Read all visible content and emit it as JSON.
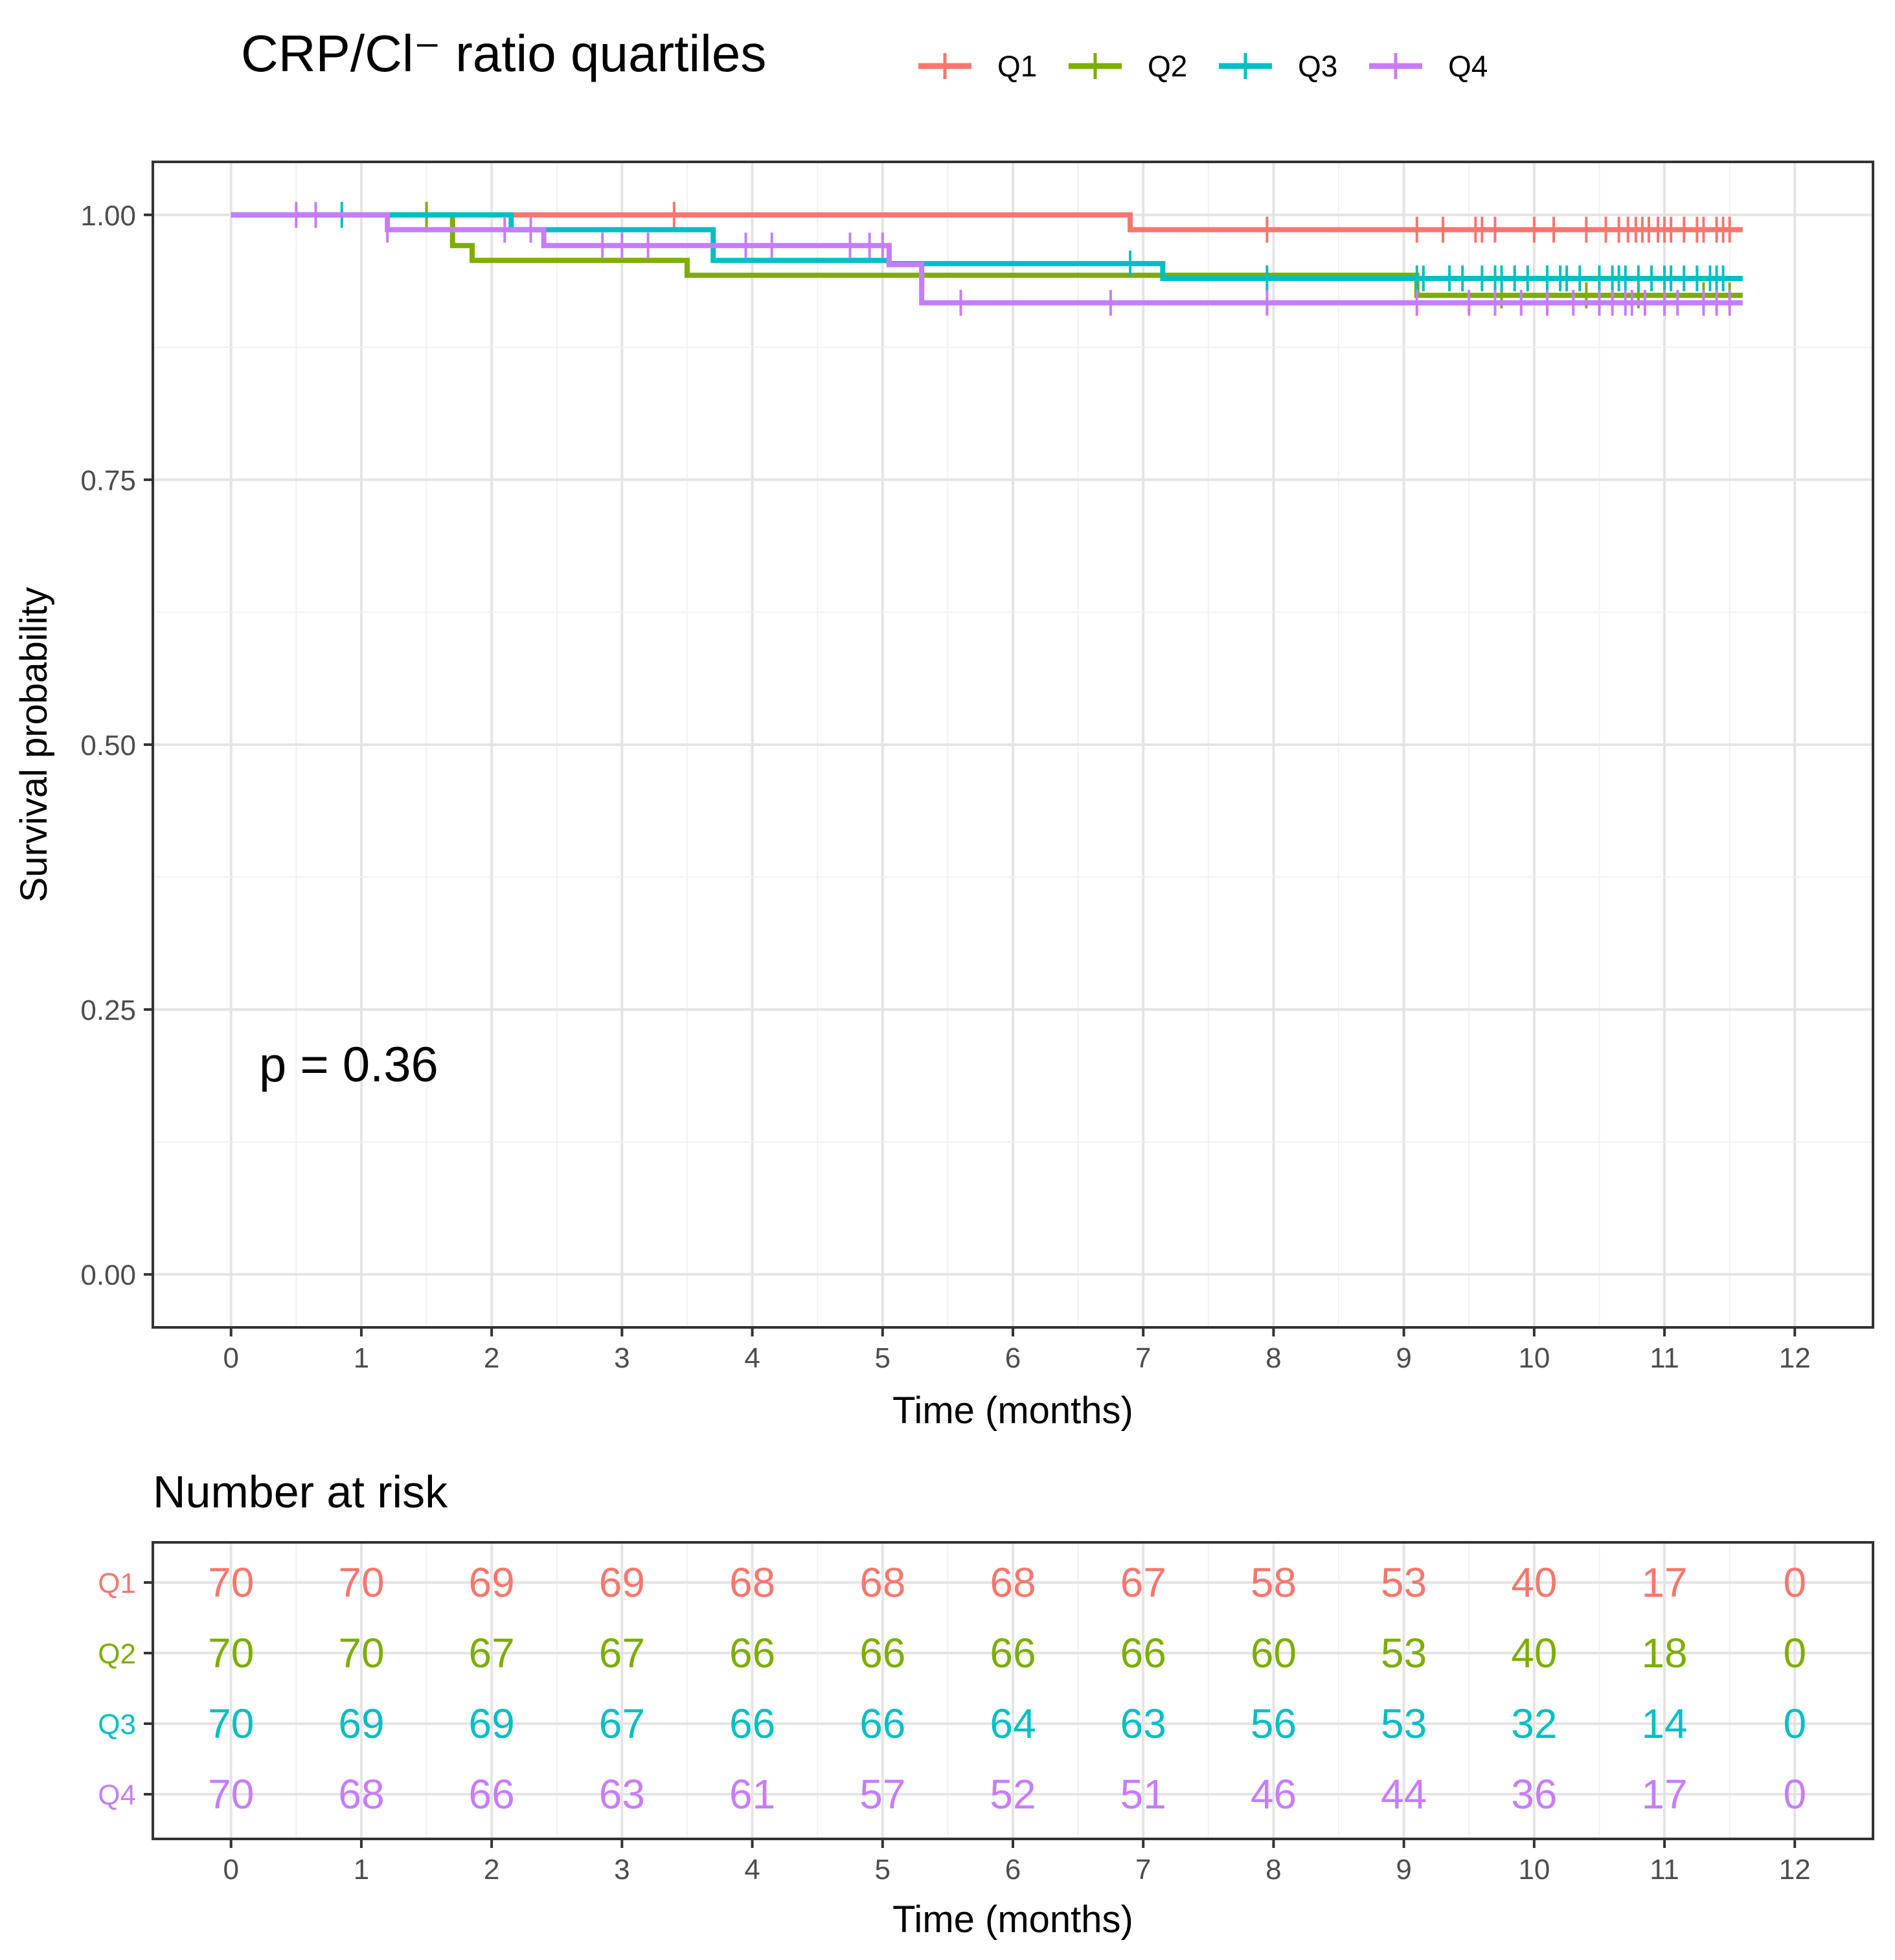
{
  "chart_data": [
    {
      "type": "line",
      "subtype": "kaplan-meier",
      "legend_title": "CRP/Cl⁻ ratio quartiles",
      "legend_position": "top",
      "xlabel": "Time (months)",
      "ylabel": "Survival probability",
      "xlim": [
        -0.6,
        12.6
      ],
      "ylim": [
        -0.05,
        1.05
      ],
      "xticks": [
        0,
        1,
        2,
        3,
        4,
        5,
        6,
        7,
        8,
        9,
        10,
        11,
        12
      ],
      "xtick_labels": [
        "0",
        "1",
        "2",
        "3",
        "4",
        "5",
        "6",
        "7",
        "8",
        "9",
        "10",
        "11",
        "12"
      ],
      "yticks": [
        0,
        0.25,
        0.5,
        0.75,
        1.0
      ],
      "ytick_labels": [
        "0.00",
        "0.25",
        "0.50",
        "0.75",
        "1.00"
      ],
      "grid": true,
      "annotation": "p = 0.36",
      "series": [
        {
          "name": "Q1",
          "color": "#F8766D",
          "steps": [
            [
              0,
              1.0
            ],
            [
              6.9,
              0.986
            ],
            [
              11.6,
              0.986
            ]
          ],
          "censor": [
            1.5,
            3.4,
            7.95,
            9.1,
            9.3,
            9.55,
            9.6,
            9.7,
            10.0,
            10.15,
            10.4,
            10.55,
            10.65,
            10.72,
            10.78,
            10.83,
            10.88,
            10.95,
            11.0,
            11.05,
            11.15,
            11.25,
            11.3,
            11.4,
            11.45,
            11.5
          ]
        },
        {
          "name": "Q2",
          "color": "#7CAE00",
          "steps": [
            [
              0,
              1.0
            ],
            [
              1.7,
              0.971
            ],
            [
              1.85,
              0.957
            ],
            [
              3.5,
              0.943
            ],
            [
              9.1,
              0.924
            ],
            [
              11.6,
              0.924
            ]
          ],
          "censor": [
            1.5,
            9.7,
            9.75,
            10.4,
            10.6,
            10.8,
            11.0,
            11.3,
            11.5
          ]
        },
        {
          "name": "Q3",
          "color": "#00BFC4",
          "steps": [
            [
              0,
              1.0
            ],
            [
              2.15,
              0.986
            ],
            [
              3.7,
              0.957
            ],
            [
              5.05,
              0.954
            ],
            [
              7.15,
              0.94
            ],
            [
              11.6,
              0.94
            ]
          ],
          "censor": [
            0.85,
            6.9,
            7.95,
            9.1,
            9.15,
            9.35,
            9.45,
            9.6,
            9.7,
            9.75,
            9.85,
            9.95,
            10.1,
            10.2,
            10.25,
            10.35,
            10.5,
            10.6,
            10.65,
            10.7,
            10.8,
            10.9,
            11.0,
            11.05,
            11.15,
            11.25,
            11.35,
            11.4,
            11.45
          ]
        },
        {
          "name": "Q4",
          "color": "#C77CFF",
          "steps": [
            [
              0,
              1.0
            ],
            [
              1.2,
              0.986
            ],
            [
              2.4,
              0.971
            ],
            [
              5.05,
              0.953
            ],
            [
              5.3,
              0.917
            ],
            [
              11.6,
              0.917
            ]
          ],
          "censor": [
            0.5,
            0.65,
            1.2,
            2.1,
            2.3,
            2.85,
            3.0,
            3.2,
            3.95,
            4.15,
            4.75,
            4.9,
            5.0,
            5.6,
            6.75,
            7.95,
            9.1,
            9.5,
            9.7,
            9.9,
            10.1,
            10.3,
            10.5,
            10.6,
            10.7,
            10.75,
            10.85,
            11.0,
            11.1,
            11.3,
            11.4,
            11.5
          ]
        }
      ]
    },
    {
      "type": "table",
      "title": "Number at risk",
      "xlabel": "Time (months)",
      "x": [
        0,
        1,
        2,
        3,
        4,
        5,
        6,
        7,
        8,
        9,
        10,
        11,
        12
      ],
      "rows": [
        {
          "name": "Q1",
          "color": "#F8766D",
          "values": [
            "70",
            "70",
            "69",
            "69",
            "68",
            "68",
            "68",
            "67",
            "58",
            "53",
            "40",
            "17",
            "0"
          ]
        },
        {
          "name": "Q2",
          "color": "#7CAE00",
          "values": [
            "70",
            "70",
            "67",
            "67",
            "66",
            "66",
            "66",
            "66",
            "60",
            "53",
            "40",
            "18",
            "0"
          ]
        },
        {
          "name": "Q3",
          "color": "#00BFC4",
          "values": [
            "70",
            "69",
            "69",
            "67",
            "66",
            "66",
            "64",
            "63",
            "56",
            "53",
            "32",
            "14",
            "0"
          ]
        },
        {
          "name": "Q4",
          "color": "#C77CFF",
          "values": [
            "70",
            "68",
            "66",
            "63",
            "61",
            "57",
            "52",
            "51",
            "46",
            "44",
            "36",
            "17",
            "0"
          ]
        }
      ]
    }
  ]
}
